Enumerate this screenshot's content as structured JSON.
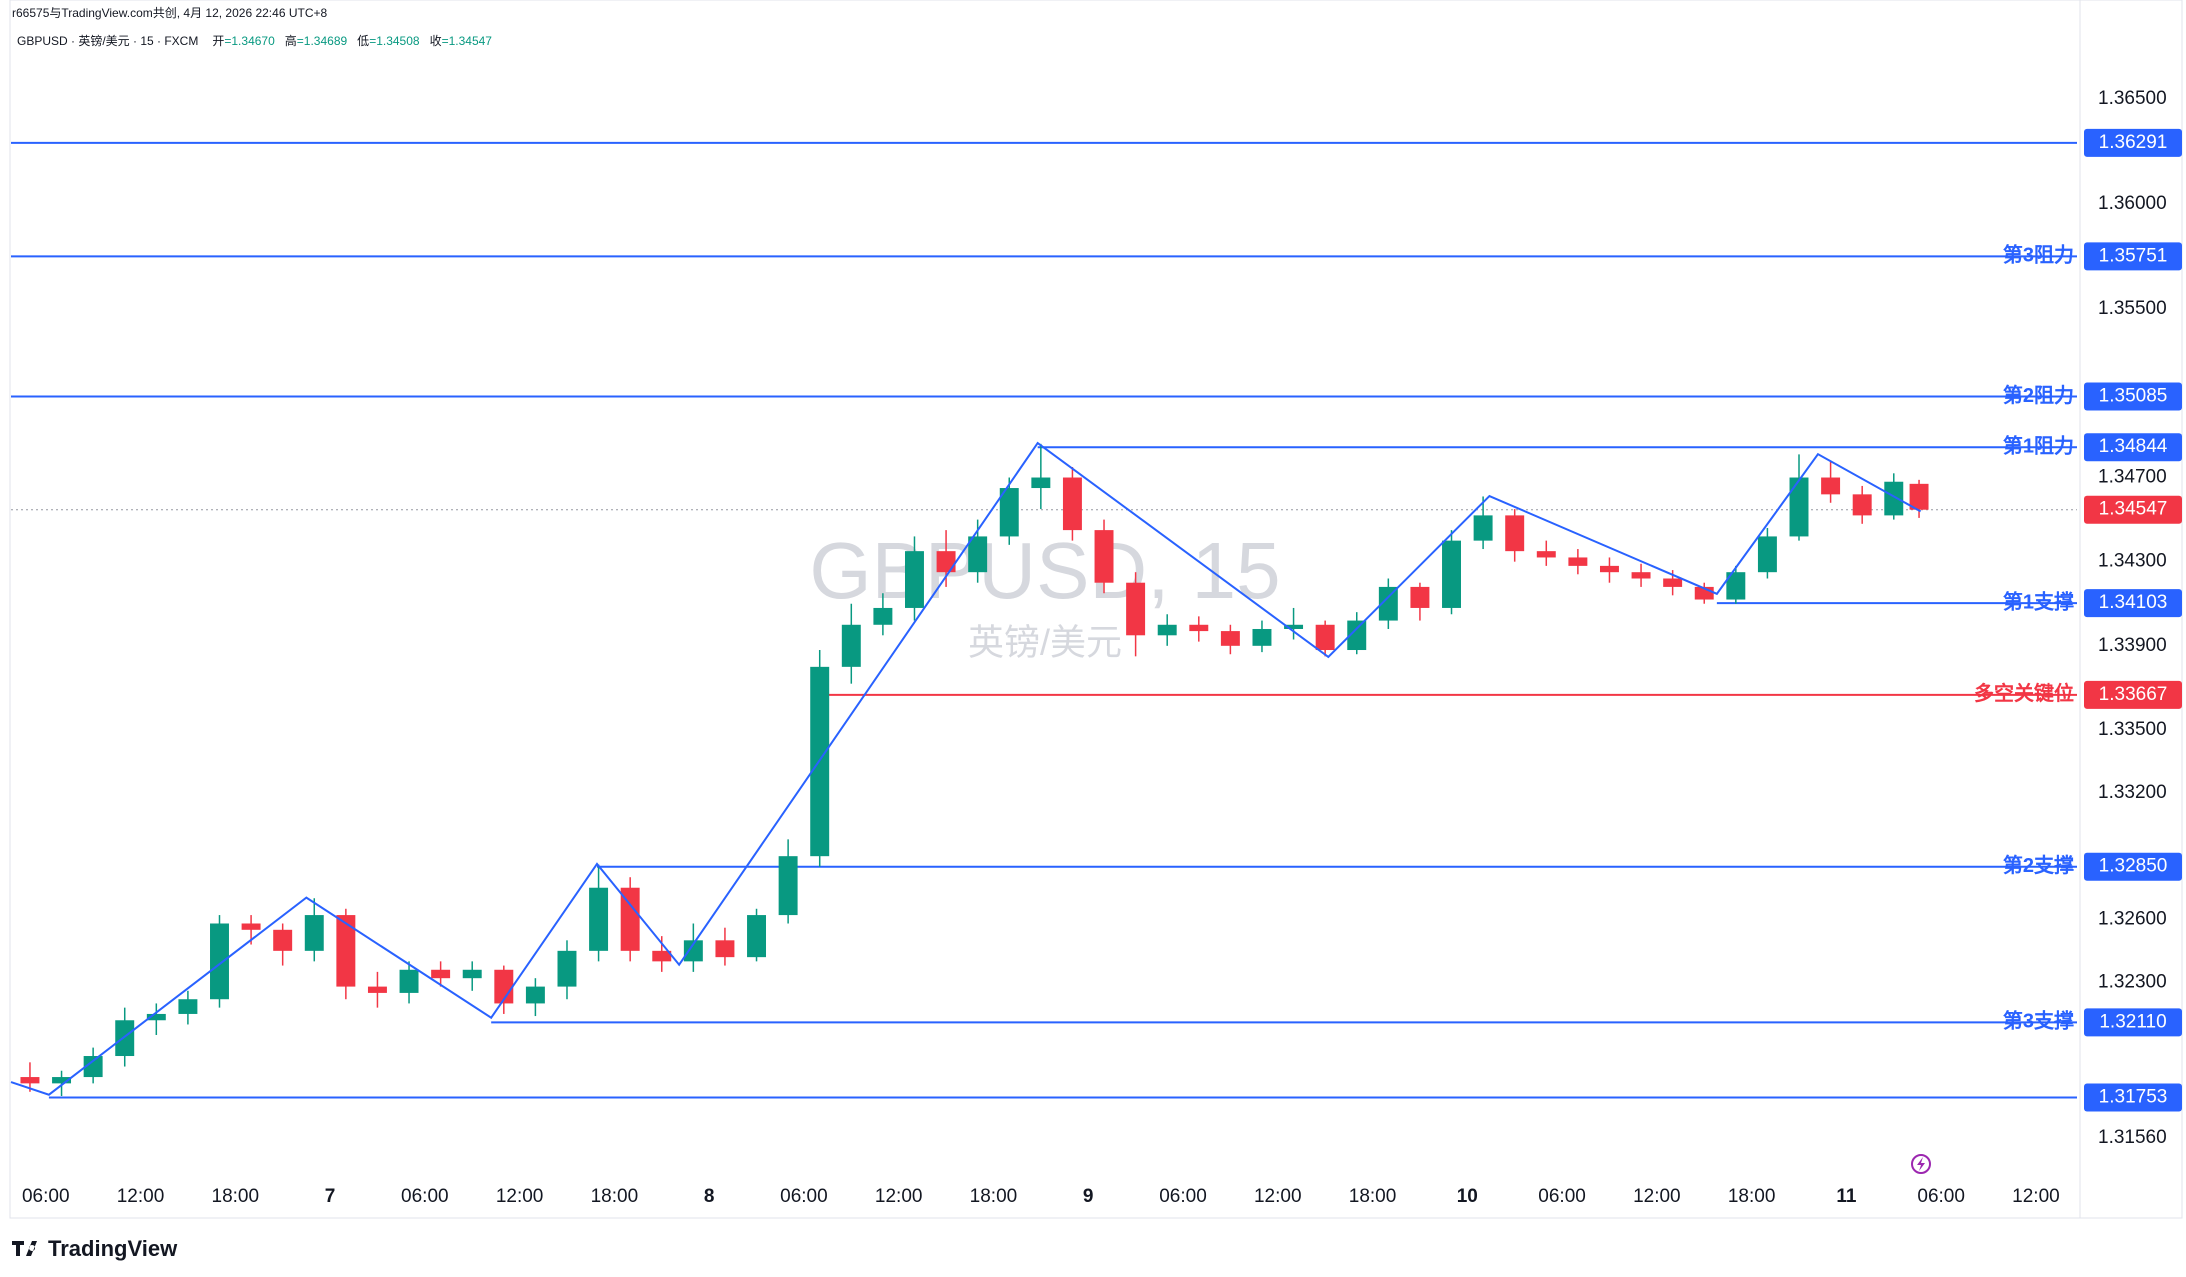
{
  "chart_data": {
    "type": "candlestick",
    "subtitle": "r66575与TradingView.com共创, 4月 12, 2026 22:46 UTC+8",
    "title": "GBPUSD · 英镑/美元 · 15 · FXCM",
    "ohlc_legend": [
      {
        "label": "开",
        "value": "=1.34670"
      },
      {
        "label": "高",
        "value": "=1.34689"
      },
      {
        "label": "低",
        "value": "=1.34508"
      },
      {
        "label": "收",
        "value": "=1.34547"
      }
    ],
    "watermark": "GBPUSD, 15",
    "watermark_sub": "英镑/美元",
    "footer": "TradingView",
    "up_color": "#089981",
    "down_color": "#f23645",
    "x": [
      5,
      7,
      9,
      11,
      13,
      15,
      17,
      19,
      21,
      23,
      25,
      27,
      29,
      31,
      33,
      35,
      37,
      39,
      41,
      43,
      45,
      47,
      49,
      51,
      53,
      55,
      57,
      59,
      61,
      63,
      65,
      67,
      69,
      71,
      73,
      75,
      77,
      79,
      81,
      83,
      85,
      87,
      89,
      91,
      93,
      95,
      97,
      99,
      101,
      103,
      105,
      107,
      109,
      111,
      113,
      115,
      117,
      119,
      121,
      123,
      124.6
    ],
    "open": [
      1.3185,
      1.3182,
      1.3185,
      1.3195,
      1.3212,
      1.3215,
      1.3222,
      1.3258,
      1.3255,
      1.3245,
      1.3262,
      1.3228,
      1.3225,
      1.3236,
      1.3232,
      1.3236,
      1.322,
      1.3228,
      1.3245,
      1.3275,
      1.3245,
      1.324,
      1.325,
      1.3242,
      1.3262,
      1.329,
      1.338,
      1.34,
      1.3408,
      1.3435,
      1.3425,
      1.3442,
      1.3465,
      1.347,
      1.3445,
      1.342,
      1.3395,
      1.34,
      1.3397,
      1.339,
      1.3398,
      1.34,
      1.3388,
      1.3402,
      1.3418,
      1.3408,
      1.344,
      1.3452,
      1.3435,
      1.3432,
      1.3428,
      1.3425,
      1.3422,
      1.3418,
      1.3412,
      1.3425,
      1.3442,
      1.347,
      1.3462,
      1.3452,
      1.3467
    ],
    "high": [
      1.3192,
      1.3188,
      1.3199,
      1.3218,
      1.322,
      1.3226,
      1.3262,
      1.3262,
      1.3258,
      1.327,
      1.3265,
      1.3235,
      1.324,
      1.324,
      1.324,
      1.3238,
      1.3232,
      1.325,
      1.3286,
      1.328,
      1.3252,
      1.3258,
      1.3256,
      1.3265,
      1.3298,
      1.3388,
      1.341,
      1.3415,
      1.3442,
      1.3445,
      1.345,
      1.347,
      1.3486,
      1.3475,
      1.345,
      1.3425,
      1.3405,
      1.3404,
      1.34,
      1.3402,
      1.3408,
      1.3402,
      1.3406,
      1.3422,
      1.342,
      1.3445,
      1.3461,
      1.3455,
      1.344,
      1.3436,
      1.3432,
      1.3429,
      1.3426,
      1.342,
      1.3428,
      1.3446,
      1.3481,
      1.3478,
      1.3466,
      1.3472,
      1.34689
    ],
    "low": [
      1.3178,
      1.3176,
      1.3182,
      1.319,
      1.3205,
      1.321,
      1.3218,
      1.3248,
      1.3238,
      1.324,
      1.3222,
      1.3218,
      1.322,
      1.3228,
      1.3226,
      1.3215,
      1.3214,
      1.3222,
      1.324,
      1.324,
      1.3235,
      1.3235,
      1.3238,
      1.324,
      1.3258,
      1.3285,
      1.3372,
      1.3395,
      1.3402,
      1.3418,
      1.342,
      1.3438,
      1.3455,
      1.344,
      1.3415,
      1.3385,
      1.339,
      1.3392,
      1.3386,
      1.3387,
      1.3393,
      1.3385,
      1.3386,
      1.3398,
      1.3402,
      1.3405,
      1.3436,
      1.343,
      1.3428,
      1.3424,
      1.342,
      1.3418,
      1.3414,
      1.341,
      1.341,
      1.3422,
      1.344,
      1.3458,
      1.3448,
      1.345,
      1.34508
    ],
    "close": [
      1.3182,
      1.3185,
      1.3195,
      1.3212,
      1.3215,
      1.3222,
      1.3258,
      1.3255,
      1.3245,
      1.3262,
      1.3228,
      1.3225,
      1.3236,
      1.3232,
      1.3236,
      1.322,
      1.3228,
      1.3245,
      1.3275,
      1.3245,
      1.324,
      1.325,
      1.3242,
      1.3262,
      1.329,
      1.338,
      1.34,
      1.3408,
      1.3435,
      1.3425,
      1.3442,
      1.3465,
      1.347,
      1.3445,
      1.342,
      1.3395,
      1.34,
      1.3397,
      1.339,
      1.3398,
      1.34,
      1.3388,
      1.3402,
      1.3418,
      1.3408,
      1.344,
      1.3452,
      1.3435,
      1.3432,
      1.3428,
      1.3425,
      1.3422,
      1.3418,
      1.3412,
      1.3425,
      1.3442,
      1.347,
      1.3462,
      1.3452,
      1.3468,
      1.34547
    ],
    "xlim": [
      3.8,
      134.6
    ],
    "xticks": [
      {
        "value": 6,
        "label": "06:00"
      },
      {
        "value": 12,
        "label": "12:00"
      },
      {
        "value": 18,
        "label": "18:00"
      },
      {
        "value": 24,
        "label": "7"
      },
      {
        "value": 30,
        "label": "06:00"
      },
      {
        "value": 36,
        "label": "12:00"
      },
      {
        "value": 42,
        "label": "18:00"
      },
      {
        "value": 48,
        "label": "8"
      },
      {
        "value": 54,
        "label": "06:00"
      },
      {
        "value": 60,
        "label": "12:00"
      },
      {
        "value": 66,
        "label": "18:00"
      },
      {
        "value": 72,
        "label": "9"
      },
      {
        "value": 78,
        "label": "06:00"
      },
      {
        "value": 84,
        "label": "12:00"
      },
      {
        "value": 90,
        "label": "18:00"
      },
      {
        "value": 96,
        "label": "10"
      },
      {
        "value": 102,
        "label": "06:00"
      },
      {
        "value": 108,
        "label": "12:00"
      },
      {
        "value": 114,
        "label": "18:00"
      },
      {
        "value": 120,
        "label": "11"
      },
      {
        "value": 126,
        "label": "06:00"
      },
      {
        "value": 132,
        "label": "12:00"
      }
    ],
    "ylim": [
      1.3118,
      1.3697
    ],
    "yticks": [
      {
        "value": 1.365,
        "label": "1.36500"
      },
      {
        "value": 1.36,
        "label": "1.36000"
      },
      {
        "value": 1.355,
        "label": "1.35500"
      },
      {
        "value": 1.347,
        "label": "1.34700"
      },
      {
        "value": 1.343,
        "label": "1.34300"
      },
      {
        "value": 1.339,
        "label": "1.33900"
      },
      {
        "value": 1.335,
        "label": "1.33500"
      },
      {
        "value": 1.332,
        "label": "1.33200"
      },
      {
        "value": 1.326,
        "label": "1.32600"
      },
      {
        "value": 1.323,
        "label": "1.32300"
      },
      {
        "value": 1.3156,
        "label": "1.31560"
      }
    ],
    "levels": [
      {
        "value": 1.36291,
        "color": "#2962ff"
      },
      {
        "label": "第3阻力",
        "value": 1.35751,
        "color": "#2962ff"
      },
      {
        "label": "第2阻力",
        "value": 1.35085,
        "color": "#2962ff"
      },
      {
        "label": "第1阻力",
        "value": 1.34844,
        "color": "#2962ff",
        "x_start": 68.8
      },
      {
        "label": "第1支撑",
        "value": 1.34103,
        "color": "#2962ff",
        "x_start": 111.8
      },
      {
        "label": "多空关键位",
        "value": 1.33667,
        "color": "#f23645",
        "x_start": 55
      },
      {
        "label": "第2支撑",
        "value": 1.3285,
        "value_label": "1.32850",
        "color": "#2962ff",
        "x_start": 40.9
      },
      {
        "label": "第3支撑",
        "value": 1.3211,
        "value_label": "1.32110",
        "color": "#2962ff",
        "x_start": 34.2
      },
      {
        "value": 1.31753,
        "color": "#2962ff",
        "x_start": 6.2
      }
    ],
    "last_price": {
      "value": 1.34547,
      "color": "#f23645"
    },
    "zigzag": {
      "color": "#2962ff",
      "x": [
        3.8,
        6.2,
        22.5,
        34.2,
        40.9,
        46.1,
        68.8,
        87.2,
        97.4,
        111.8,
        118.2,
        124.7
      ],
      "values": [
        1.31826,
        1.31766,
        1.32703,
        1.32132,
        1.32863,
        1.32384,
        1.34864,
        1.33847,
        1.34612,
        1.34147,
        1.34811,
        1.34539
      ]
    }
  }
}
